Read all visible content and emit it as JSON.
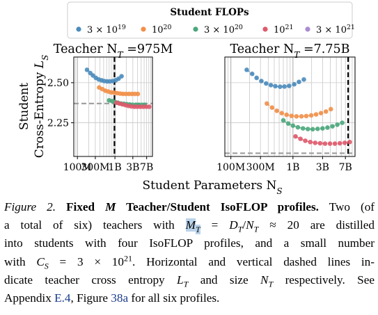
{
  "legend": {
    "title": "Student FLOPs",
    "entries": [
      {
        "label": "3 × 10",
        "sup": "19",
        "color": "#4c8cbd"
      },
      {
        "label": "10",
        "sup": "20",
        "color": "#f1904a"
      },
      {
        "label": "3 × 10",
        "sup": "20",
        "color": "#4ba77c"
      },
      {
        "label": "10",
        "sup": "21",
        "color": "#de5a6c"
      },
      {
        "label": "3 × 10",
        "sup": "21",
        "color": "#a98bd0"
      }
    ]
  },
  "axes": {
    "ylabel_line1": "Student",
    "ylabel_line2": "Cross-Entropy L",
    "ylabel_sub": "S",
    "xlabel": "Student Parameters N",
    "xlabel_sub": "S"
  },
  "chart_data": [
    {
      "type": "scatter",
      "title": "Teacher N",
      "title_sub": "T",
      "title_value": " =975M",
      "x_ticklabels": [
        "100M",
        "300M",
        "1B",
        "3B",
        "7B"
      ],
      "y_ticklabels": [
        "2.50",
        "2.25"
      ],
      "xscale": "log",
      "xlim": [
        80000000,
        10000000000
      ],
      "ylim": [
        2.04,
        2.66
      ],
      "teacher_size": 975000000,
      "teacher_loss": 2.37,
      "series": [
        {
          "color": "#4c8cbd",
          "x": [
            180000000,
            220000000,
            260000000,
            310000000,
            370000000,
            440000000,
            520000000,
            620000000,
            730000000,
            870000000,
            1050000000,
            1250000000,
            1500000000
          ],
          "y": [
            2.58,
            2.56,
            2.545,
            2.53,
            2.52,
            2.515,
            2.51,
            2.508,
            2.508,
            2.51,
            2.515,
            2.525,
            2.54
          ]
        },
        {
          "color": "#f1904a",
          "x": [
            380000000,
            460000000,
            550000000,
            660000000,
            790000000,
            950000000,
            1140000000,
            1370000000,
            1640000000,
            1970000000,
            2360000000,
            2830000000,
            3400000000,
            4080000000
          ],
          "y": [
            2.47,
            2.46,
            2.45,
            2.445,
            2.44,
            2.438,
            2.435,
            2.432,
            2.43,
            2.43,
            2.43,
            2.43,
            2.43,
            2.43
          ]
        },
        {
          "color": "#4ba77c",
          "x": [
            700000000,
            840000000,
            1000000000,
            1200000000,
            1450000000,
            1740000000,
            2080000000,
            2500000000,
            3000000000,
            3600000000,
            4320000000,
            5180000000,
            6220000000
          ],
          "y": [
            2.39,
            2.385,
            2.38,
            2.375,
            2.37,
            2.368,
            2.366,
            2.364,
            2.362,
            2.362,
            2.362,
            2.362,
            2.362
          ]
        },
        {
          "color": "#de5a6c",
          "x": [
            1100000000,
            1320000000,
            1580000000,
            1900000000,
            2280000000,
            2740000000,
            3290000000,
            3950000000,
            4740000000,
            5690000000,
            6830000000,
            8200000000
          ],
          "y": [
            2.375,
            2.37,
            2.365,
            2.36,
            2.355,
            2.352,
            2.35,
            2.35,
            2.35,
            2.35,
            2.35,
            2.35
          ]
        }
      ]
    },
    {
      "type": "scatter",
      "title": "Teacher N",
      "title_sub": "T",
      "title_value": " =7.75B",
      "x_ticklabels": [
        "100M",
        "300M",
        "1B",
        "3B",
        "7B"
      ],
      "y_ticklabels": [],
      "xscale": "log",
      "xlim": [
        80000000,
        10000000000
      ],
      "ylim": [
        2.04,
        2.66
      ],
      "teacher_size": 7750000000,
      "teacher_loss": 2.06,
      "series": [
        {
          "color": "#4c8cbd",
          "x": [
            180000000,
            220000000,
            260000000,
            310000000,
            370000000,
            440000000,
            520000000,
            620000000,
            730000000,
            870000000,
            1050000000,
            1250000000,
            1500000000
          ],
          "y": [
            2.58,
            2.555,
            2.53,
            2.51,
            2.495,
            2.485,
            2.478,
            2.475,
            2.476,
            2.48,
            2.49,
            2.505,
            2.52
          ]
        },
        {
          "color": "#f1904a",
          "x": [
            380000000,
            460000000,
            550000000,
            660000000,
            790000000,
            950000000,
            1140000000,
            1370000000,
            1640000000,
            1970000000,
            2360000000,
            2830000000,
            3400000000,
            4080000000
          ],
          "y": [
            2.37,
            2.345,
            2.325,
            2.31,
            2.3,
            2.293,
            2.29,
            2.29,
            2.292,
            2.296,
            2.302,
            2.31,
            2.32,
            2.335
          ]
        },
        {
          "color": "#4ba77c",
          "x": [
            700000000,
            840000000,
            1000000000,
            1200000000,
            1450000000,
            1740000000,
            2080000000,
            2500000000,
            3000000000,
            3600000000,
            4320000000,
            5180000000,
            6220000000
          ],
          "y": [
            2.265,
            2.245,
            2.232,
            2.222,
            2.215,
            2.211,
            2.21,
            2.212,
            2.215,
            2.22,
            2.228,
            2.238,
            2.25
          ]
        },
        {
          "color": "#de5a6c",
          "x": [
            1100000000,
            1320000000,
            1580000000,
            1900000000,
            2280000000,
            2740000000,
            3290000000,
            3950000000,
            4740000000,
            5690000000,
            6830000000,
            8200000000
          ],
          "y": [
            2.165,
            2.15,
            2.138,
            2.13,
            2.125,
            2.122,
            2.12,
            2.12,
            2.12,
            2.122,
            2.125,
            2.13
          ]
        }
      ]
    }
  ],
  "caption": {
    "lines": [
      [
        {
          "t": "Figure 2.",
          "s": "fig-label"
        },
        {
          "t": " "
        },
        {
          "t": "Fixed ",
          "s": "bold"
        },
        {
          "t": "M",
          "s": "bold",
          "i": true
        },
        {
          "t": " Teacher/Student IsoFLOP profiles.",
          "s": "bold"
        },
        {
          "t": " Two (of"
        }
      ],
      [
        {
          "t": "a total of six) teachers with "
        },
        {
          "t": "M",
          "i": true,
          "hl": true
        },
        {
          "t": "T",
          "sub": true,
          "i": true,
          "hl": true
        },
        {
          "t": " = "
        },
        {
          "t": "D",
          "i": true
        },
        {
          "t": "T",
          "sub": true,
          "i": true
        },
        {
          "t": "/"
        },
        {
          "t": "N",
          "i": true
        },
        {
          "t": "T",
          "sub": true,
          "i": true
        },
        {
          "t": " ≈ 20 are distilled"
        }
      ],
      [
        {
          "t": "into students with four IsoFLOP profiles, and a small number"
        }
      ],
      [
        {
          "t": "with "
        },
        {
          "t": "C",
          "i": true
        },
        {
          "t": "S",
          "sub": true,
          "i": true
        },
        {
          "t": " = 3 × 10"
        },
        {
          "t": "21",
          "sup": true
        },
        {
          "t": ". Horizontal and vertical dashed lines in-"
        }
      ],
      [
        {
          "t": "dicate teacher cross entropy "
        },
        {
          "t": "L",
          "i": true
        },
        {
          "t": "T",
          "sub": true,
          "i": true
        },
        {
          "t": " and size "
        },
        {
          "t": "N",
          "i": true
        },
        {
          "t": "T",
          "sub": true,
          "i": true
        },
        {
          "t": " respectively. See"
        }
      ],
      [
        {
          "t": "Appendix "
        },
        {
          "t": "E.4",
          "color": "#1a3a8c"
        },
        {
          "t": ", Figure "
        },
        {
          "t": "38a",
          "color": "#1a3a8c"
        },
        {
          "t": " for all six profiles."
        }
      ]
    ]
  }
}
